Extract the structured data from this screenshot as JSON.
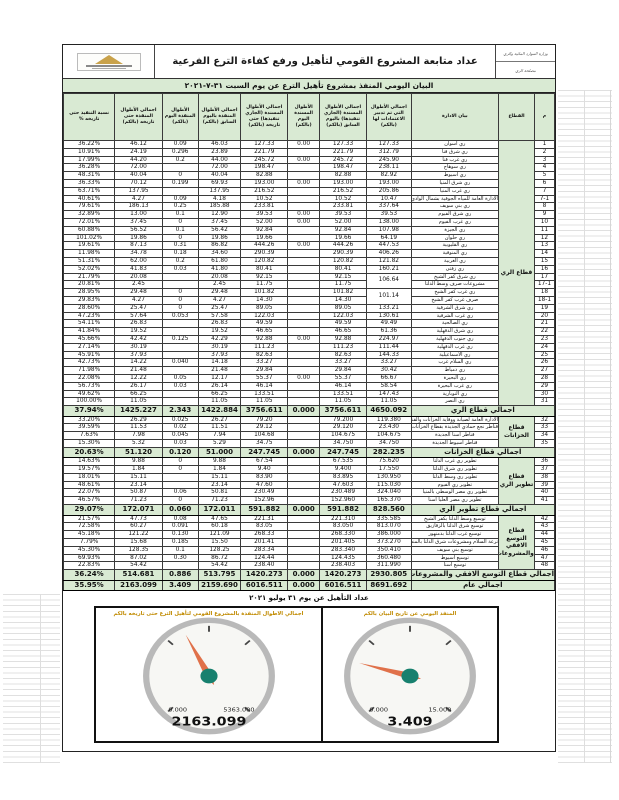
{
  "colors": {
    "accent_green": "#d9ead3",
    "gauge_needle": "#e0714a",
    "gauge_hub": "#17806e",
    "gauge_title": "#c08a00"
  },
  "header": {
    "ministry_line1": "وزارة الموارد المائية والري",
    "ministry_line2": "مصلحة الري",
    "main_title": "عداد متابعة المشروع القومي لتأهيل ورفع كفاءة الترع الفرعية",
    "subtitle": "البيان اليومي المنفذ بمشروع تأهيل الترع عن يوم السبت ٣١-٧-٢٠٢١"
  },
  "table": {
    "headers": [
      "م",
      "القطاع",
      "بيان الادارة",
      "اجمالي الأطوال التي تم تدبير الاعتمادات لها (بالكم)",
      "اجمالي الأطوال المسندة (الجاري تنفيذها) باليوم السابق (بالكم)",
      "الأطوال المسندة اليوم (بالكم)",
      "اجمالي الأطوال المسندة (الجاري تنفيذها) حتى تاريخه (بالكم)",
      "اجمالي الأطوال المنفذة باليوم السابق (بالكم)",
      "الأطوال المنفذة اليوم (بالكم)",
      "اجمالي الأطوال المنفذة حتى تاريخه (بالكم)",
      "نسبة التنفيذ حتى تاريخه %"
    ],
    "sections": [
      {
        "sector": "قطاع الري",
        "total_label": "اجمالي قطاع الري",
        "total": [
          "4650.092",
          "3756.611",
          "0.000",
          "3756.611",
          "1422.884",
          "2.343",
          "1425.227",
          "37.94%"
        ],
        "rows": [
          [
            "1",
            "ري اسوان",
            "127.33",
            "127.33",
            "0.00",
            "127.33",
            "46.03",
            "0.09",
            "46.12",
            "36.22%"
          ],
          [
            "2",
            "ري شرق قنا",
            "312.79",
            "221.79",
            "",
            "221.79",
            "23.89",
            "0.296",
            "24.19",
            "10.91%"
          ],
          [
            "3",
            "ري غرب قنا",
            "245.90",
            "245.72",
            "0.00",
            "245.72",
            "44.00",
            "0.2",
            "44.20",
            "17.99%"
          ],
          [
            "4",
            "ري سوهاج",
            "238.11",
            "198.47",
            "",
            "198.47",
            "72.00",
            "",
            "72.00",
            "36.28%"
          ],
          [
            "5",
            "ري أسيوط",
            "82.92",
            "82.88",
            "",
            "82.88",
            "40.04",
            "0",
            "40.04",
            "48.31%"
          ],
          [
            "6",
            "ري شرق المنيا",
            "193.00",
            "193.00",
            "0.00",
            "193.00",
            "69.93",
            "0.199",
            "70.12",
            "36.33%"
          ],
          [
            "7",
            "ري غرب المنيا",
            "205.86",
            "216.52",
            "",
            "216.52",
            "137.95",
            "",
            "137.95",
            "63.71%"
          ],
          [
            "7-1",
            "الادارة العامة للمياه الجوفية بشمال الوادي بالمنيا",
            "10.47",
            "10.52",
            "",
            "10.52",
            "4.18",
            "0.09",
            "4.27",
            "40.61%"
          ],
          [
            "8",
            "ري بني سويف",
            "337.64",
            "233.81",
            "",
            "233.81",
            "185.88",
            "0.25",
            "186.13",
            "79.61%"
          ],
          [
            "9",
            "ري شرق الفيوم",
            "39.53",
            "39.53",
            "0.00",
            "39.53",
            "12.90",
            "0.1",
            "13.00",
            "32.89%"
          ],
          [
            "10",
            "ري غرب الفيوم",
            "138.00",
            "52.00",
            "0.00",
            "52.00",
            "37.45",
            "0",
            "37.45",
            "72.01%"
          ],
          [
            "11",
            "ري الجيزة",
            "107.98",
            "92.84",
            "",
            "92.84",
            "56.42",
            "0.1",
            "56.52",
            "60.88%"
          ],
          [
            "12",
            "ري حلوان",
            "64.19",
            "19.66",
            "",
            "19.66",
            "19.86",
            "0",
            "19.86",
            "101.02%"
          ],
          [
            "13",
            "ري القليوبية",
            "447.53",
            "444.26",
            "0.00",
            "444.26",
            "86.82",
            "0.31",
            "87.13",
            "19.61%"
          ],
          [
            "14",
            "ري المنوفية",
            "406.26",
            "290.39",
            "",
            "290.39",
            "34.60",
            "0.18",
            "34.78",
            "11.98%"
          ],
          [
            "15",
            "ري الغربية",
            "121.82",
            "120.82",
            "",
            "120.82",
            "61.80",
            "0.2",
            "62.00",
            "51.31%"
          ],
          [
            "16",
            "ري زفتى",
            "160.21",
            "80.41",
            "",
            "80.41",
            "41.80",
            "0.03",
            "41.83",
            "52.02%"
          ],
          [
            "17",
            "ري شرق كفر الشيخ",
            "106.64",
            "92.15",
            "",
            "92.15",
            "20.08",
            "",
            "20.08",
            "21.79%",
            "s"
          ],
          [
            "17-1",
            "مشروعات صرف وسط الدلتا",
            "",
            "11.75",
            "",
            "11.75",
            "2.45",
            "",
            "2.45",
            "20.81%",
            "c"
          ],
          [
            "18",
            "ري غرب كفر الشيخ",
            "101.14",
            "101.82",
            "",
            "101.82",
            "29.48",
            "0",
            "29.48",
            "28.95%",
            "s"
          ],
          [
            "18-1",
            "صرف غرب كفر الشيخ",
            "",
            "14.30",
            "",
            "14.30",
            "4.27",
            "0",
            "4.27",
            "29.83%",
            "c"
          ],
          [
            "19",
            "ري شرق الشرقية",
            "133.21",
            "89.05",
            "",
            "89.05",
            "25.47",
            "0",
            "25.47",
            "28.60%"
          ],
          [
            "20",
            "ري غرب الشرقية",
            "130.61",
            "122.03",
            "",
            "122.03",
            "57.58",
            "0.053",
            "57.64",
            "47.23%"
          ],
          [
            "21",
            "ري الصالحية",
            "49.49",
            "49.59",
            "",
            "49.59",
            "26.83",
            "",
            "26.83",
            "54.11%"
          ],
          [
            "22",
            "ري شرق الدقهلية",
            "61.36",
            "46.65",
            "",
            "46.65",
            "19.52",
            "",
            "19.52",
            "41.84%"
          ],
          [
            "23",
            "ري جنوب الدقهلية",
            "224.97",
            "92.88",
            "0.00",
            "92.88",
            "42.29",
            "0.125",
            "42.42",
            "45.66%"
          ],
          [
            "24",
            "ري غرب الدقهلية",
            "111.44",
            "111.23",
            "",
            "111.23",
            "30.19",
            "",
            "30.19",
            "27.14%"
          ],
          [
            "25",
            "ري الاسماعيلية",
            "144.33",
            "82.63",
            "",
            "82.63",
            "37.93",
            "",
            "37.93",
            "45.91%"
          ],
          [
            "26",
            "ري السلام غرب",
            "33.27",
            "33.27",
            "",
            "33.27",
            "14.18",
            "0.040",
            "14.22",
            "42.73%"
          ],
          [
            "27",
            "ري دمياط",
            "30.42",
            "29.84",
            "",
            "29.84",
            "21.48",
            "",
            "21.48",
            "71.98%"
          ],
          [
            "28",
            "ري البحيرة",
            "66.67",
            "55.37",
            "0.00",
            "55.37",
            "12.17",
            "0.05",
            "12.22",
            "22.08%"
          ],
          [
            "29",
            "ري غرب البحيرة",
            "58.54",
            "46.14",
            "",
            "46.14",
            "26.14",
            "0.03",
            "26.17",
            "56.73%"
          ],
          [
            "30",
            "ري النوبارية",
            "147.43",
            "133.51",
            "",
            "133.51",
            "66.25",
            "",
            "66.25",
            "49.62%"
          ],
          [
            "31",
            "ري النصر",
            "11.05",
            "11.05",
            "",
            "11.05",
            "11.05",
            "",
            "11.05",
            "100.00%"
          ]
        ]
      },
      {
        "sector": "قطاع الخزانات",
        "total_label": "اجمالي قطاع الخزانات",
        "total": [
          "282.235",
          "247.745",
          "0.000",
          "247.745",
          "51.000",
          "0.120",
          "51.120",
          "20.63%"
        ],
        "rows": [
          [
            "32",
            "الادارة العامة لصيانة ووقاية الخزانات والقناطر الكبرى",
            "119.380",
            "79.200",
            "",
            "79.20",
            "26.27",
            "0.025",
            "26.29",
            "33.20%"
          ],
          [
            "33",
            "قناطر نجع حمادي الجديدة بقطاع الخزانات",
            "23.430",
            "29.120",
            "",
            "29.12",
            "11.51",
            "0.02",
            "11.53",
            "39.59%"
          ],
          [
            "34",
            "قناطر اسنا الجديدة",
            "104.675",
            "104.675",
            "",
            "104.68",
            "7.94",
            "0.045",
            "7.98",
            "7.63%"
          ],
          [
            "35",
            "قناطر اسيوط الجديدة",
            "34.750",
            "34.750",
            "",
            "34.75",
            "5.29",
            "0.03",
            "5.32",
            "15.30%"
          ]
        ]
      },
      {
        "sector": "قطاع تطوير الري",
        "total_label": "اجمالي قطاع تطوير الري",
        "total": [
          "828.560",
          "591.882",
          "0.000",
          "591.882",
          "172.011",
          "0.060",
          "172.071",
          "29.07%"
        ],
        "rows": [
          [
            "36",
            "تطوير ري غرب الدلتا",
            "75.620",
            "67.535",
            "",
            "67.54",
            "9.88",
            "0",
            "9.88",
            "14.63%"
          ],
          [
            "37",
            "تطوير ري شرق الدلتا",
            "17.550",
            "9.400",
            "",
            "9.40",
            "1.84",
            "0",
            "1.84",
            "19.57%"
          ],
          [
            "38",
            "تطوير ري وسط الدلتا",
            "130.950",
            "83.895",
            "",
            "83.90",
            "15.11",
            "",
            "15.11",
            "18.01%"
          ],
          [
            "39",
            "تطوير ري الفيوم",
            "115.030",
            "47.603",
            "",
            "47.60",
            "23.14",
            "",
            "23.14",
            "48.61%"
          ],
          [
            "40",
            "تطوير ري مصر الوسطى بالمنيا",
            "324.040",
            "230.489",
            "",
            "230.49",
            "50.81",
            "0.06",
            "50.87",
            "22.07%"
          ],
          [
            "41",
            "تطوير ري مصر العليا اسنا",
            "165.370",
            "152.960",
            "",
            "152.96",
            "71.23",
            "0",
            "71.23",
            "46.57%"
          ]
        ]
      },
      {
        "sector": "قطاع التوسع الافقي والمشروعات",
        "total_label": "اجمالي قطاع التوسع الافقي والمشروعات",
        "total": [
          "2930.805",
          "1420.273",
          "0.000",
          "1420.273",
          "513.795",
          "0.886",
          "514.681",
          "36.24%"
        ],
        "rows": [
          [
            "42",
            "توسيع وسط الدلتا بكفر الشيخ",
            "335.585",
            "221.310",
            "",
            "221.31",
            "47.65",
            "0.08",
            "47.73",
            "21.57%"
          ],
          [
            "43",
            "توسيع شرق الدلتا بالزقازيق",
            "813.070",
            "83.050",
            "",
            "83.05",
            "60.18",
            "0.091",
            "60.27",
            "72.58%"
          ],
          [
            "44",
            "توسيع غرب الدلتا بدمنهور",
            "386.000",
            "268.330",
            "",
            "268.33",
            "121.09",
            "0.130",
            "121.22",
            "45.18%"
          ],
          [
            "45",
            "ترعة السلام ومشروعات شرق الدلتا بالمنصورة",
            "373.270",
            "201.405",
            "",
            "201.41",
            "15.50",
            "0.185",
            "15.68",
            "7.79%"
          ],
          [
            "46",
            "توسيع بني سويف",
            "350.410",
            "283.340",
            "",
            "283.34",
            "128.25",
            "0.1",
            "128.35",
            "45.30%"
          ],
          [
            "47",
            "توسيع اسيوط",
            "360.480",
            "124.435",
            "",
            "124.44",
            "86.72",
            "0.30",
            "87.02",
            "69.93%"
          ],
          [
            "48",
            "توسيع اسنا",
            "311.990",
            "238.403",
            "",
            "238.40",
            "54.42",
            "",
            "54.42",
            "22.83%"
          ]
        ]
      }
    ],
    "grand_label": "اجمالي عام",
    "grand": [
      "8691.692",
      "6016.511",
      "0.000",
      "6016.511",
      "2159.690",
      "3.409",
      "2163.099",
      "35.95%"
    ]
  },
  "caption": "عداد التأهيل عن يوم ٣١ يوليو ٢٠٢١",
  "gauges": [
    {
      "title": "اجمالي الاطوال المنفذة بالمشروع القومي لتأهيل الترع حتى تاريخه بالكم",
      "min": "0.000",
      "max": "5363.000",
      "value": "2163.099"
    },
    {
      "title": "المنفذ اليومي عن تاريخ البيان بالكم",
      "min": "0.000",
      "max": "15.000",
      "value": "3.409"
    }
  ]
}
